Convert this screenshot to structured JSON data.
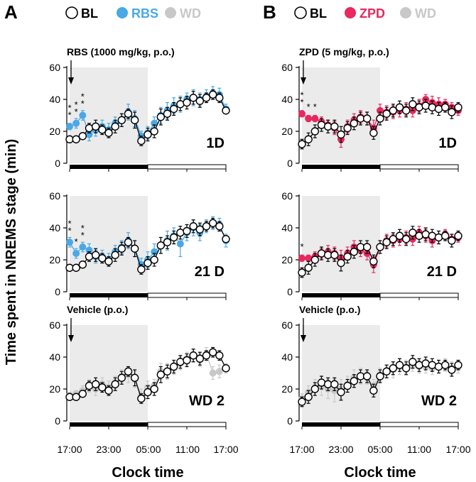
{
  "figure": {
    "ylabel": "Time spent in NREMS stage (min)",
    "xlabel": "Clock time",
    "xticks": [
      "17:00",
      "23:00",
      "05:00",
      "11:00",
      "17:00"
    ],
    "yticks": [
      0,
      20,
      40,
      60
    ],
    "colors": {
      "BL": "#ffffff",
      "RBS": "#4aa8e6",
      "ZPD": "#e8285e",
      "WD": "#c8c8c8",
      "shade": "#ebebeb"
    }
  },
  "panels": [
    {
      "letter": "A",
      "legend": [
        {
          "label": "BL",
          "color": "#ffffff",
          "text_color": "#000000"
        },
        {
          "label": "RBS",
          "color": "#4aa8e6",
          "text_color": "#4aa8e6"
        },
        {
          "label": "WD",
          "color": "#c8c8c8",
          "text_color": "#c8c8c8"
        }
      ]
    },
    {
      "letter": "B",
      "legend": [
        {
          "label": "BL",
          "color": "#ffffff",
          "text_color": "#000000"
        },
        {
          "label": "ZPD",
          "color": "#e8285e",
          "text_color": "#e8285e"
        },
        {
          "label": "WD",
          "color": "#c8c8c8",
          "text_color": "#c8c8c8"
        }
      ]
    }
  ],
  "chart_data": [
    {
      "type": "line",
      "panel": "A",
      "row": 1,
      "day_label": "1D",
      "annotation": "RBS (1000 mg/kg, p.o.)",
      "ylim": [
        0,
        60
      ],
      "x_hours": [
        0,
        1,
        2,
        3,
        4,
        5,
        6,
        7,
        8,
        9,
        10,
        11,
        12,
        13,
        14,
        15,
        16,
        17,
        18,
        19,
        20,
        21,
        22,
        23,
        24
      ],
      "series": [
        {
          "name": "BL",
          "color": "#ffffff",
          "values": [
            15,
            15,
            17,
            22,
            23,
            21,
            19,
            23,
            27,
            31,
            27,
            14,
            18,
            20,
            29,
            31,
            34,
            37,
            38,
            41,
            39,
            41,
            43,
            41,
            33
          ],
          "errors": [
            1,
            1,
            2,
            3,
            4,
            3,
            3,
            4,
            4,
            3,
            5,
            3,
            4,
            4,
            5,
            4,
            4,
            4,
            4,
            4,
            4,
            3,
            3,
            3,
            2
          ]
        },
        {
          "name": "RBS",
          "color": "#4aa8e6",
          "values": [
            23,
            25,
            30,
            18,
            21,
            23,
            21,
            25,
            27,
            32,
            28,
            17,
            19,
            25,
            30,
            33,
            36,
            37,
            40,
            41,
            40,
            42,
            44,
            43,
            34
          ],
          "errors": [
            2,
            3,
            3,
            4,
            4,
            4,
            4,
            4,
            4,
            5,
            5,
            3,
            4,
            4,
            5,
            5,
            5,
            5,
            4,
            5,
            4,
            4,
            4,
            4,
            3
          ]
        }
      ],
      "asterisks": [
        "**",
        "**",
        "**"
      ]
    },
    {
      "type": "line",
      "panel": "A",
      "row": 2,
      "day_label": "21 D",
      "annotation": "",
      "ylim": [
        0,
        60
      ],
      "x_hours": [
        0,
        1,
        2,
        3,
        4,
        5,
        6,
        7,
        8,
        9,
        10,
        11,
        12,
        13,
        14,
        15,
        16,
        17,
        18,
        19,
        20,
        21,
        22,
        23,
        24
      ],
      "series": [
        {
          "name": "BL",
          "color": "#ffffff",
          "values": [
            15,
            15,
            17,
            22,
            23,
            21,
            19,
            23,
            27,
            31,
            27,
            14,
            18,
            20,
            29,
            31,
            34,
            37,
            38,
            41,
            39,
            41,
            43,
            41,
            33
          ],
          "errors": [
            1,
            1,
            2,
            3,
            4,
            3,
            3,
            4,
            4,
            3,
            5,
            3,
            4,
            4,
            5,
            4,
            4,
            4,
            4,
            4,
            4,
            3,
            3,
            3,
            2
          ]
        },
        {
          "name": "RBS",
          "color": "#4aa8e6",
          "values": [
            31,
            24,
            28,
            26,
            22,
            22,
            20,
            25,
            28,
            32,
            27,
            17,
            20,
            25,
            29,
            32,
            35,
            30,
            37,
            40,
            37,
            41,
            43,
            42,
            32
          ],
          "errors": [
            3,
            3,
            3,
            4,
            4,
            4,
            4,
            4,
            4,
            5,
            5,
            4,
            5,
            5,
            5,
            6,
            5,
            8,
            5,
            5,
            5,
            4,
            4,
            4,
            4
          ]
        }
      ],
      "asterisks": [
        "**",
        "*",
        "**"
      ]
    },
    {
      "type": "line",
      "panel": "A",
      "row": 3,
      "day_label": "WD 2",
      "annotation": "Vehicle (p.o.)",
      "ylim": [
        0,
        60
      ],
      "x_hours": [
        0,
        1,
        2,
        3,
        4,
        5,
        6,
        7,
        8,
        9,
        10,
        11,
        12,
        13,
        14,
        15,
        16,
        17,
        18,
        19,
        20,
        21,
        22,
        23,
        24
      ],
      "series": [
        {
          "name": "BL",
          "color": "#ffffff",
          "values": [
            15,
            15,
            17,
            22,
            23,
            21,
            19,
            23,
            27,
            31,
            27,
            14,
            18,
            20,
            29,
            31,
            34,
            37,
            38,
            41,
            39,
            41,
            43,
            41,
            33
          ],
          "errors": [
            1,
            1,
            2,
            3,
            4,
            3,
            3,
            4,
            4,
            3,
            5,
            3,
            4,
            4,
            5,
            4,
            4,
            4,
            4,
            4,
            4,
            3,
            3,
            3,
            2
          ]
        },
        {
          "name": "WD",
          "color": "#c8c8c8",
          "values": [
            16,
            17,
            19,
            22,
            20,
            23,
            21,
            24,
            28,
            29,
            26,
            16,
            21,
            22,
            31,
            31,
            33,
            36,
            39,
            41,
            38,
            42,
            30,
            31,
            33
          ],
          "errors": [
            2,
            2,
            3,
            4,
            4,
            4,
            4,
            4,
            4,
            5,
            5,
            4,
            4,
            4,
            5,
            5,
            4,
            4,
            4,
            4,
            4,
            4,
            4,
            4,
            3
          ]
        }
      ],
      "asterisks": []
    },
    {
      "type": "line",
      "panel": "B",
      "row": 1,
      "day_label": "1D",
      "annotation": "ZPD (5 mg/kg, p.o.)",
      "ylim": [
        0,
        60
      ],
      "x_hours": [
        0,
        1,
        2,
        3,
        4,
        5,
        6,
        7,
        8,
        9,
        10,
        11,
        12,
        13,
        14,
        15,
        16,
        17,
        18,
        19,
        20,
        21,
        22,
        23,
        24
      ],
      "series": [
        {
          "name": "BL",
          "color": "#ffffff",
          "values": [
            12,
            15,
            20,
            24,
            23,
            23,
            18,
            22,
            25,
            28,
            28,
            19,
            28,
            31,
            33,
            35,
            33,
            37,
            35,
            36,
            35,
            34,
            35,
            32,
            35
          ],
          "errors": [
            3,
            4,
            4,
            4,
            4,
            4,
            5,
            4,
            4,
            4,
            4,
            4,
            4,
            4,
            4,
            4,
            4,
            4,
            4,
            4,
            4,
            4,
            3,
            4,
            3
          ]
        },
        {
          "name": "ZPD",
          "color": "#e8285e",
          "values": [
            31,
            28,
            28,
            26,
            24,
            22,
            15,
            23,
            27,
            29,
            28,
            22,
            33,
            32,
            32,
            33,
            34,
            33,
            36,
            40,
            38,
            37,
            37,
            35,
            33
          ],
          "errors": [
            2,
            2,
            2,
            3,
            3,
            4,
            5,
            4,
            4,
            4,
            4,
            5,
            4,
            4,
            4,
            4,
            4,
            4,
            4,
            3,
            4,
            4,
            3,
            3,
            3
          ]
        }
      ],
      "asterisks": [
        "**",
        "*",
        "*"
      ]
    },
    {
      "type": "line",
      "panel": "B",
      "row": 2,
      "day_label": "21 D",
      "annotation": "",
      "ylim": [
        0,
        60
      ],
      "x_hours": [
        0,
        1,
        2,
        3,
        4,
        5,
        6,
        7,
        8,
        9,
        10,
        11,
        12,
        13,
        14,
        15,
        16,
        17,
        18,
        19,
        20,
        21,
        22,
        23,
        24
      ],
      "series": [
        {
          "name": "BL",
          "color": "#ffffff",
          "values": [
            12,
            15,
            20,
            24,
            23,
            23,
            18,
            22,
            25,
            28,
            28,
            19,
            28,
            31,
            33,
            35,
            33,
            37,
            35,
            36,
            35,
            34,
            35,
            32,
            35
          ],
          "errors": [
            3,
            4,
            4,
            4,
            4,
            4,
            5,
            4,
            4,
            4,
            4,
            4,
            4,
            4,
            4,
            4,
            4,
            4,
            4,
            4,
            4,
            4,
            3,
            4,
            3
          ]
        },
        {
          "name": "ZPD",
          "color": "#e8285e",
          "values": [
            21,
            21,
            22,
            24,
            25,
            24,
            21,
            24,
            28,
            26,
            24,
            17,
            28,
            32,
            32,
            33,
            34,
            33,
            37,
            35,
            32,
            34,
            36,
            33,
            34
          ],
          "errors": [
            2,
            2,
            3,
            3,
            4,
            4,
            5,
            4,
            4,
            4,
            4,
            5,
            4,
            4,
            4,
            4,
            4,
            4,
            4,
            4,
            4,
            4,
            3,
            3,
            3
          ]
        }
      ],
      "asterisks": [
        "*"
      ]
    },
    {
      "type": "line",
      "panel": "B",
      "row": 3,
      "day_label": "WD 2",
      "annotation": "Vehicle (p.o.)",
      "ylim": [
        0,
        60
      ],
      "x_hours": [
        0,
        1,
        2,
        3,
        4,
        5,
        6,
        7,
        8,
        9,
        10,
        11,
        12,
        13,
        14,
        15,
        16,
        17,
        18,
        19,
        20,
        21,
        22,
        23,
        24
      ],
      "series": [
        {
          "name": "BL",
          "color": "#ffffff",
          "values": [
            12,
            15,
            20,
            24,
            23,
            23,
            18,
            22,
            25,
            28,
            28,
            19,
            28,
            31,
            33,
            35,
            33,
            37,
            35,
            36,
            35,
            34,
            35,
            32,
            35
          ],
          "errors": [
            3,
            4,
            4,
            4,
            4,
            4,
            5,
            4,
            4,
            4,
            4,
            4,
            4,
            4,
            4,
            4,
            4,
            4,
            4,
            4,
            4,
            4,
            3,
            4,
            3
          ]
        },
        {
          "name": "WD",
          "color": "#c8c8c8",
          "values": [
            14,
            18,
            21,
            22,
            20,
            19,
            20,
            23,
            27,
            28,
            27,
            22,
            29,
            31,
            32,
            34,
            34,
            35,
            34,
            34,
            33,
            34,
            35,
            33,
            34
          ],
          "errors": [
            3,
            4,
            5,
            6,
            6,
            7,
            6,
            5,
            5,
            5,
            4,
            4,
            4,
            4,
            5,
            5,
            4,
            4,
            4,
            4,
            4,
            4,
            4,
            4,
            4
          ]
        }
      ],
      "asterisks": []
    }
  ]
}
